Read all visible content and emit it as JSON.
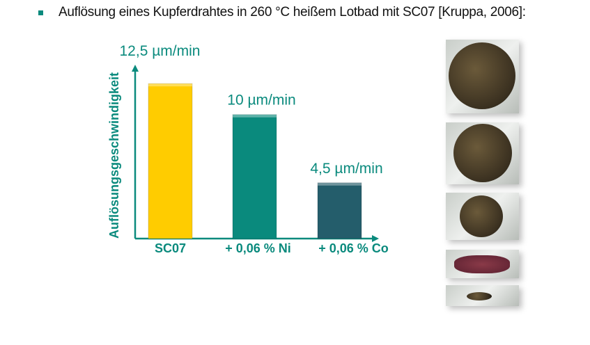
{
  "heading": "Auflösung eines Kupferdrahtes in 260 °C heißem Lotbad mit SC07 [Kruppa, 2006]:",
  "chart_data": {
    "type": "bar",
    "categories": [
      "SC07",
      "+ 0,06 % Ni",
      "+ 0,06 % Co"
    ],
    "values": [
      12.5,
      10,
      4.5
    ],
    "data_labels": [
      "12,5 µm/min",
      "10 µm/min",
      "4,5 µm/min"
    ],
    "ylabel": "Auflösungsgeschwindigkeit",
    "xlabel": "",
    "unit": "µm/min",
    "ylim": [
      0,
      13.8
    ],
    "grid": false,
    "colors": [
      "#ffcc00",
      "#0a8a7d",
      "#245d6b"
    ],
    "axis_color": "#0a8a7d"
  }
}
